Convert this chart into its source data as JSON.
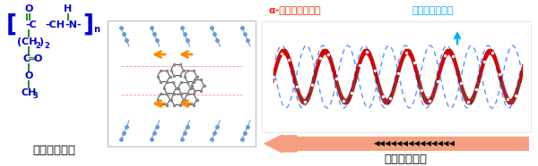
{
  "bg_color": "#ffffff",
  "left_label": "ポリペプチド",
  "right_label": "棒状蔕旋構造",
  "alpha_helix_label": "α-ヘリックス構造",
  "h_bond_label": "分子内水素結合",
  "formula_color": "#0000cc",
  "green_bond_color": "#228B22",
  "alpha_label_color": "#ff2200",
  "hbond_label_color": "#00aaff",
  "arrow_body_color": "#f4a460",
  "arrow_head_color": "#f08060",
  "helix_color": "#cc0000",
  "hbond_line_color": "#4488ff",
  "figsize": [
    6.0,
    1.86
  ],
  "dpi": 100
}
